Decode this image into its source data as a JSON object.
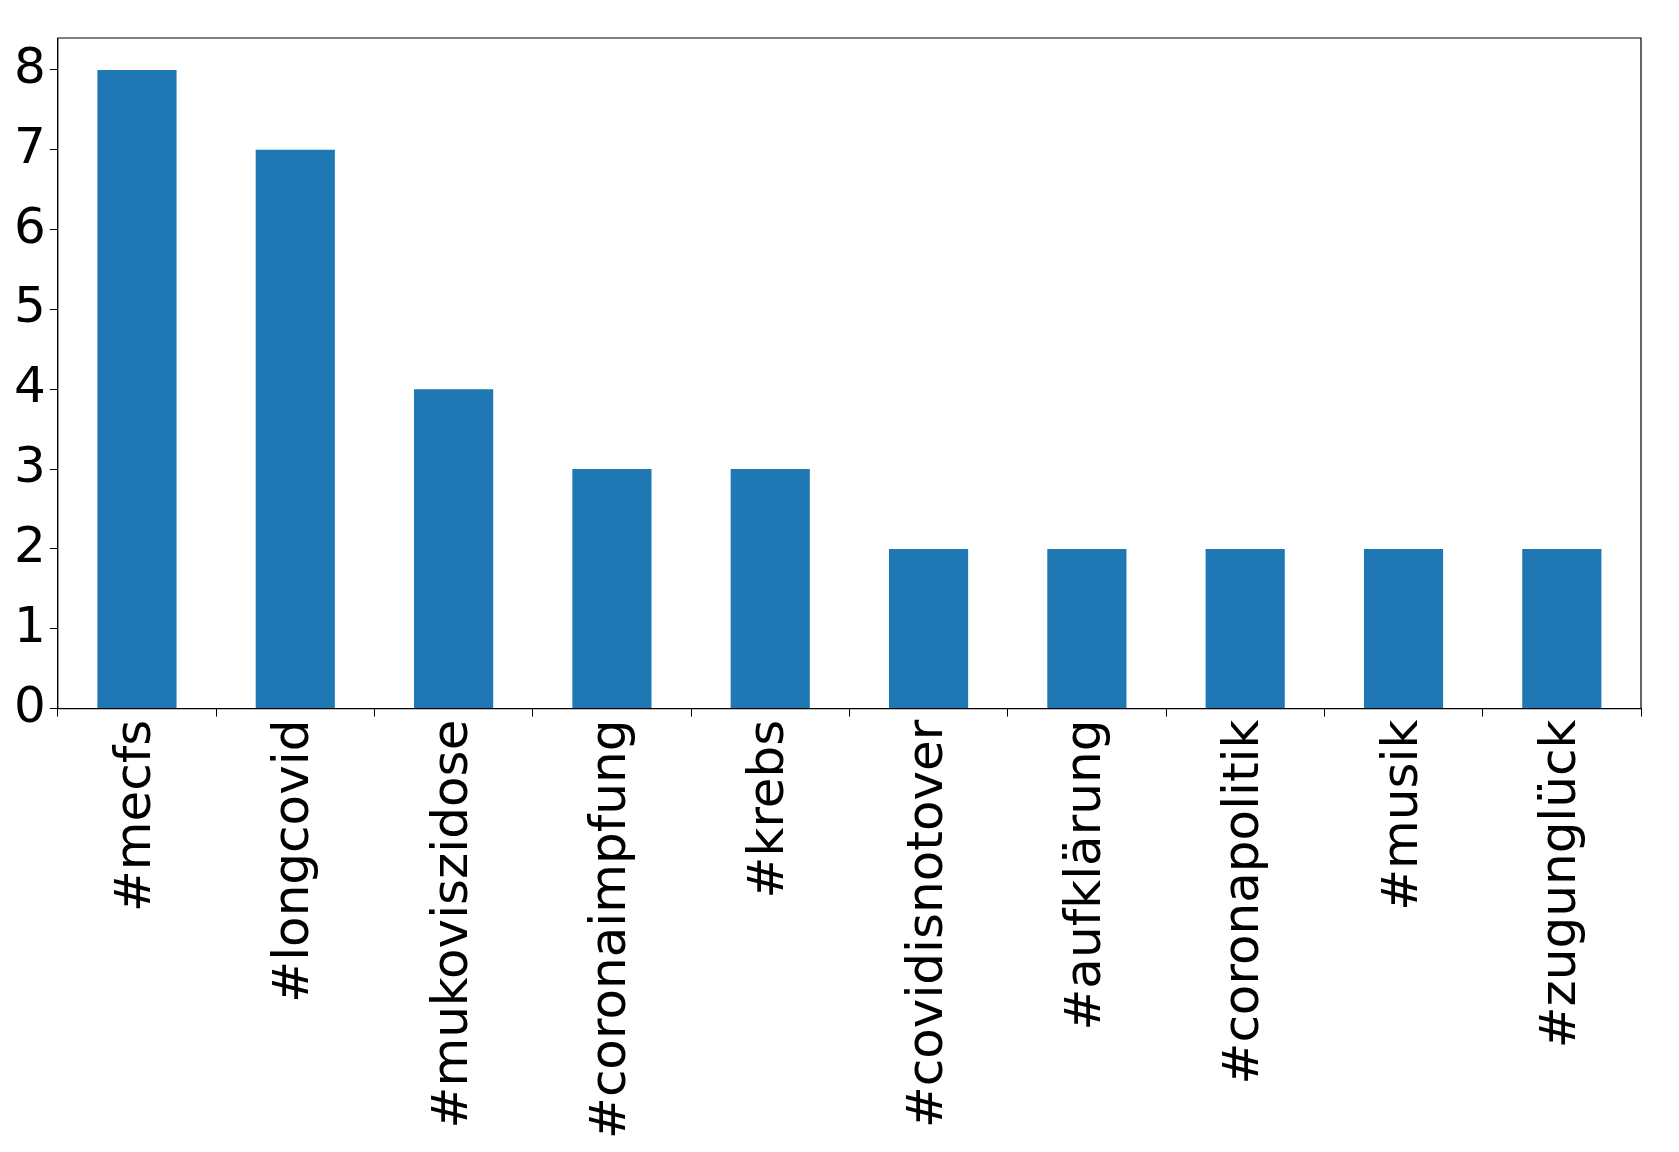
{
  "chart_data": {
    "type": "bar",
    "categories": [
      "#mecfs",
      "#longcovid",
      "#mukoviszidose",
      "#coronaimpfung",
      "#krebs",
      "#covidisnotover",
      "#aufklärung",
      "#coronapolitik",
      "#musik",
      "#zugunglück"
    ],
    "values": [
      8,
      7,
      4,
      3,
      3,
      2,
      2,
      2,
      2,
      2
    ],
    "color": "#1f77b4",
    "ylim": [
      0,
      8.4
    ],
    "yticks": [
      0,
      1,
      2,
      3,
      4,
      5,
      6,
      7,
      8
    ]
  }
}
